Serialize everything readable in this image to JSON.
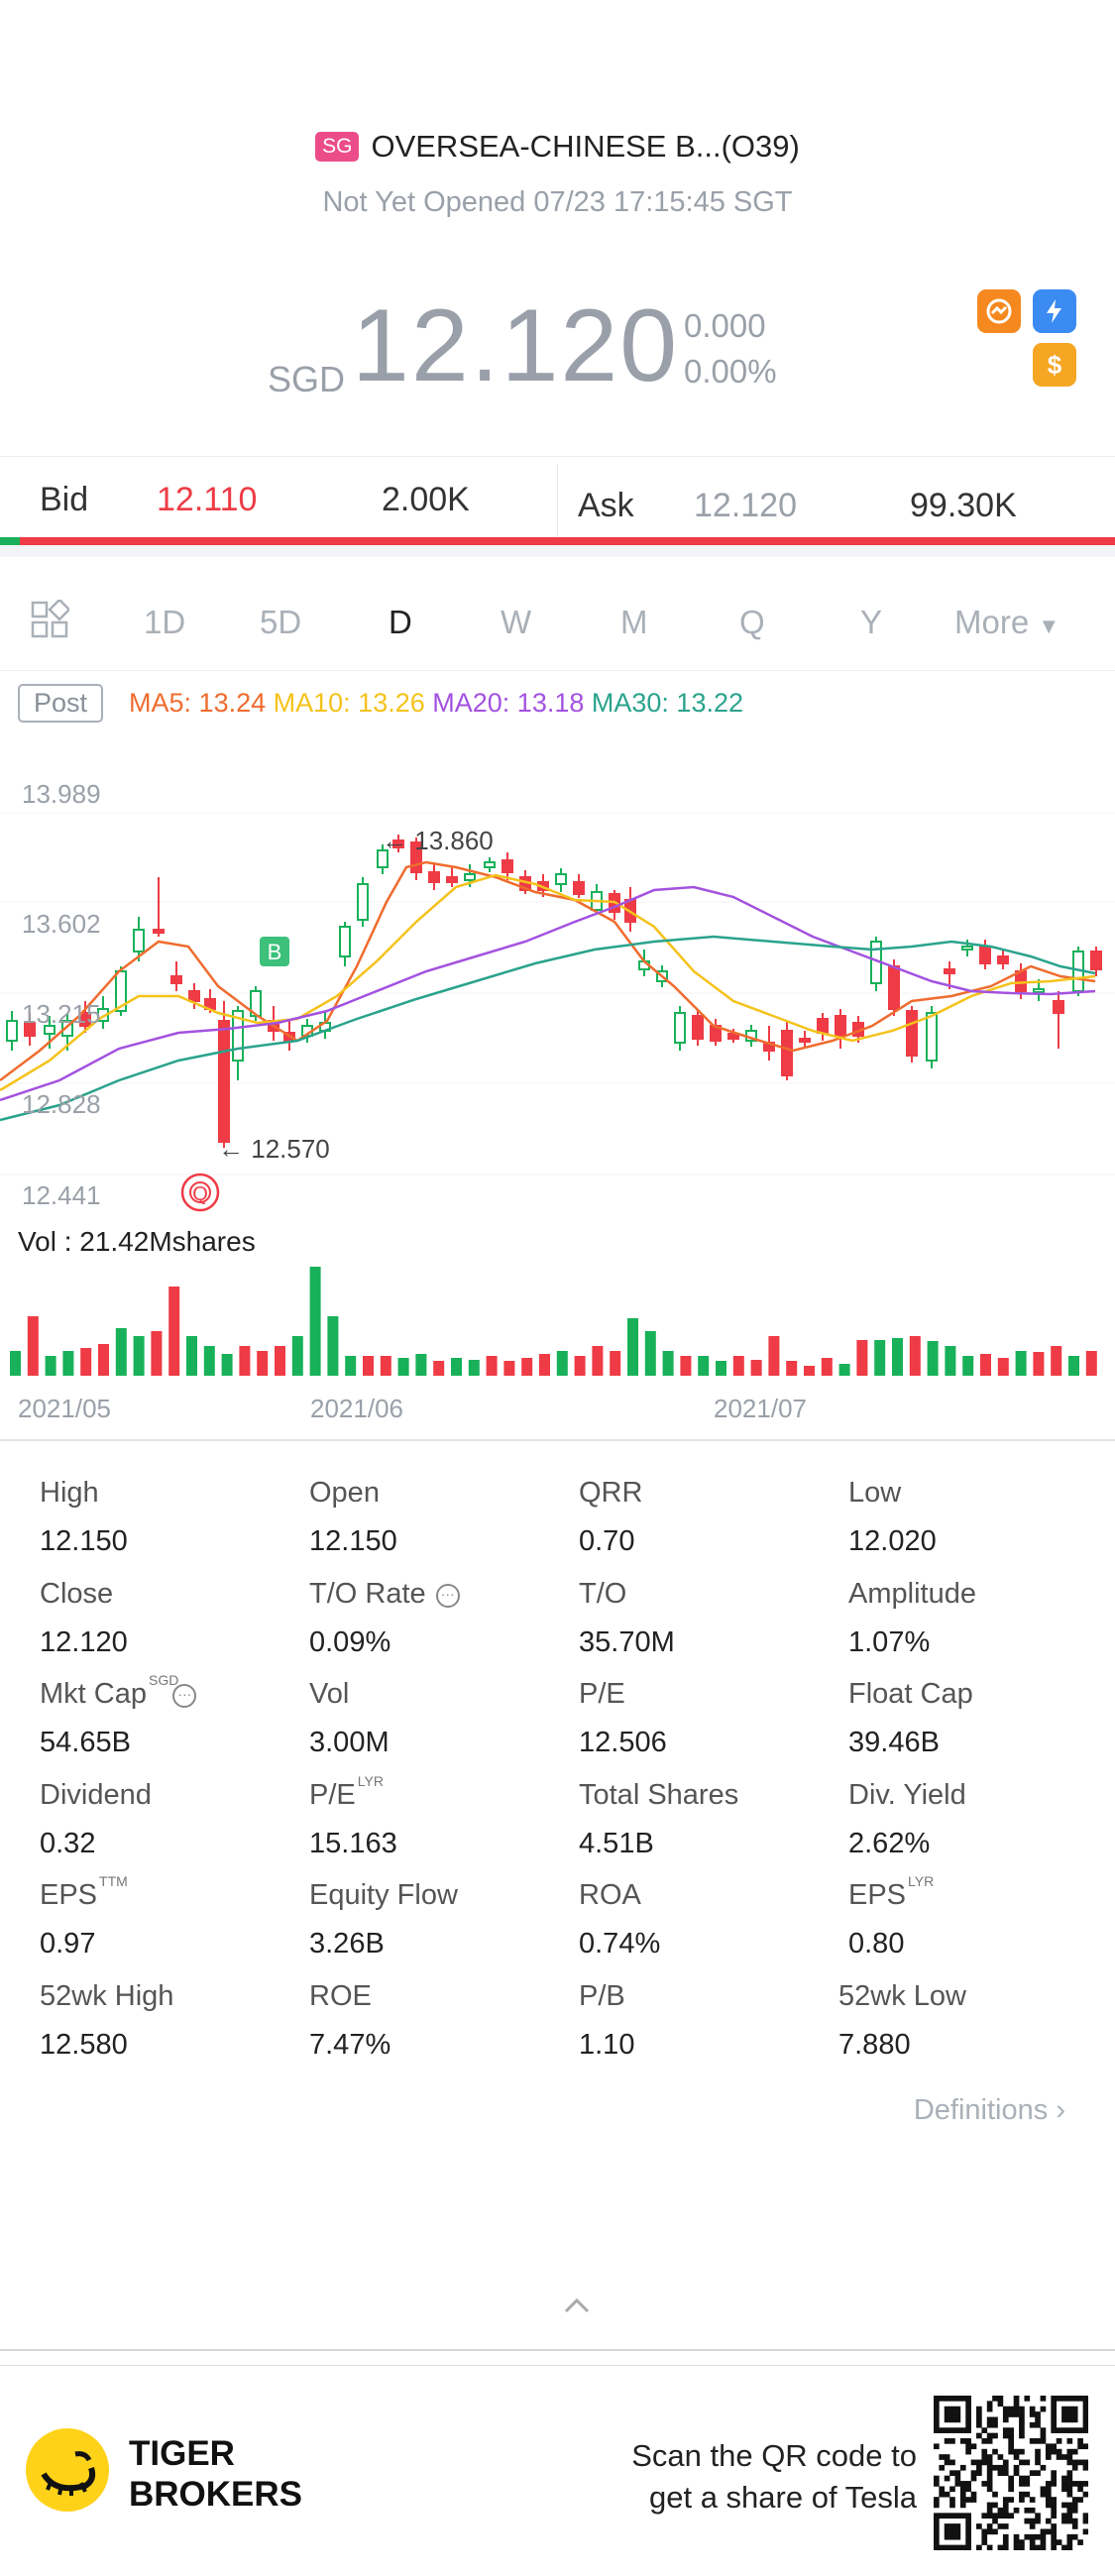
{
  "header": {
    "market_badge": "SG",
    "stock_name": "OVERSEA-CHINESE B...(O39)",
    "status": "Not Yet Opened 07/23 17:15:45 SGT",
    "currency": "SGD",
    "price": "12.120",
    "change": "0.000",
    "change_pct": "0.00%"
  },
  "bidask": {
    "bid_label": "Bid",
    "bid_price": "12.110",
    "bid_size": "2.00K",
    "ask_label": "Ask",
    "ask_price": "12.120",
    "ask_size": "99.30K"
  },
  "tabs": [
    "1D",
    "5D",
    "D",
    "W",
    "M",
    "Q",
    "Y",
    "More"
  ],
  "active_tab": "D",
  "ma": {
    "post": "Post",
    "ma5": "MA5: 13.24",
    "ma10": "MA10: 13.26",
    "ma20": "MA20: 13.18",
    "ma30": "MA30: 13.22",
    "colors": {
      "ma5": "#ef6c2e",
      "ma10": "#f5c21b",
      "ma20": "#a352e0",
      "ma30": "#2aa38c"
    }
  },
  "chart": {
    "y_labels": [
      "13.989",
      "13.602",
      "13.215",
      "12.828",
      "12.441"
    ],
    "high_marker": "13.860",
    "low_marker": "12.570",
    "marker_b": "B",
    "marker_q": "Q",
    "volume_label": "Vol  : 21.42Mshares",
    "x_labels": [
      "2021/05",
      "2021/06",
      "2021/07"
    ],
    "up_color": "#18b15a",
    "down_color": "#ee3b45"
  },
  "stats": [
    {
      "label": "High",
      "value": "12.150"
    },
    {
      "label": "Open",
      "value": "12.150"
    },
    {
      "label": "QRR",
      "value": "0.70"
    },
    {
      "label": "Low",
      "value": "12.020"
    },
    {
      "label": "Close",
      "value": "12.120"
    },
    {
      "label": "T/O Rate",
      "value": "0.09%"
    },
    {
      "label": "T/O",
      "value": "35.70M"
    },
    {
      "label": "Amplitude",
      "value": "1.07%"
    },
    {
      "label": "Mkt Cap",
      "value": "54.65B",
      "sup": "SGD"
    },
    {
      "label": "Vol",
      "value": "3.00M"
    },
    {
      "label": "P/E",
      "value": "12.506"
    },
    {
      "label": "Float Cap",
      "value": "39.46B"
    },
    {
      "label": "Dividend",
      "value": "0.32"
    },
    {
      "label": "P/E",
      "value": "15.163",
      "sup": "LYR"
    },
    {
      "label": "Total Shares",
      "value": "4.51B"
    },
    {
      "label": "Div. Yield",
      "value": "2.62%"
    },
    {
      "label": "EPS",
      "value": "0.97",
      "sup": "TTM"
    },
    {
      "label": "Equity Flow",
      "value": "3.26B"
    },
    {
      "label": "ROA",
      "value": "0.74%"
    },
    {
      "label": "EPS",
      "value": "0.80",
      "sup": "LYR"
    },
    {
      "label": "52wk High",
      "value": "12.580"
    },
    {
      "label": "ROE",
      "value": "7.47%"
    },
    {
      "label": "P/B",
      "value": "1.10"
    },
    {
      "label": "52wk Low",
      "value": "7.880"
    }
  ],
  "definitions": "Definitions",
  "footer": {
    "brand_line1": "TIGER",
    "brand_line2": "BROKERS",
    "scan_line1": "Scan the QR code to",
    "scan_line2": "get a share of Tesla"
  }
}
